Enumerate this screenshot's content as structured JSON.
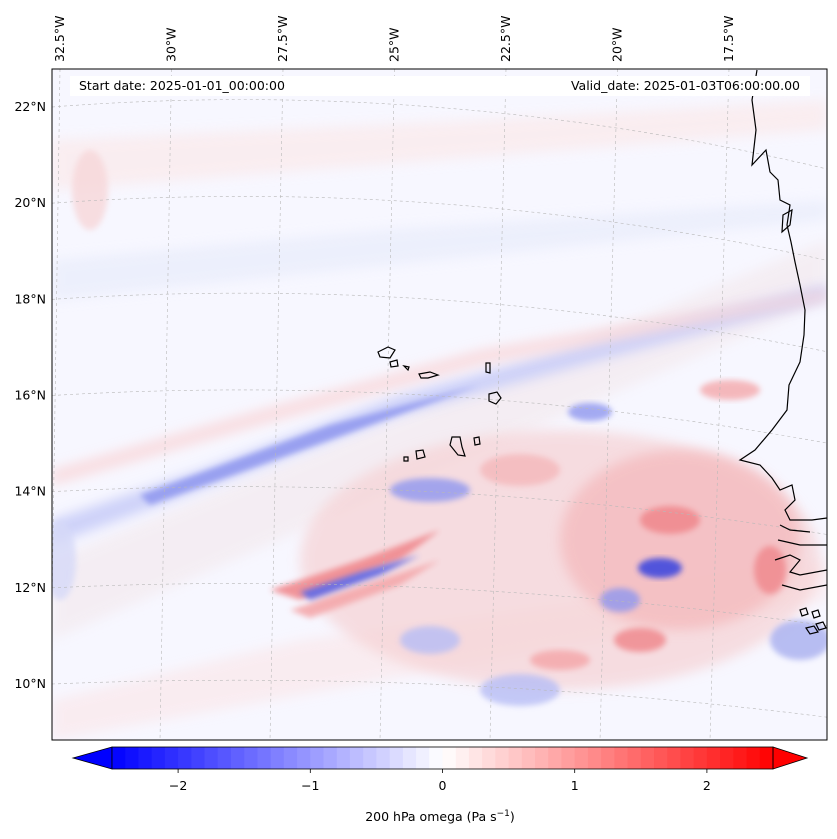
{
  "header": {
    "start_label": "Start date: 2025-01-01_00:00:00",
    "valid_label": "Valid_date: 2025-01-03T06:00:00.00"
  },
  "map": {
    "longitude_labels": [
      "32.5°W",
      "30°W",
      "27.5°W",
      "25°W",
      "22.5°W",
      "20°W",
      "17.5°W"
    ],
    "latitude_labels": [
      "22°N",
      "20°N",
      "18°N",
      "16°N",
      "14°N",
      "12°N",
      "10°N"
    ],
    "longitudes": [
      -32.5,
      -30,
      -27.5,
      -25,
      -22.5,
      -20,
      -17.5
    ],
    "latitudes": [
      22,
      20,
      18,
      16,
      14,
      12,
      10
    ],
    "extent": {
      "lon_min": -33,
      "lon_max": -15.8,
      "lat_min": 8.8,
      "lat_max": 22.8
    },
    "grid": true,
    "gridline_style": "dashed",
    "coastline_color": "#000000",
    "features": [
      "Cape Verde islands",
      "West African coastline (Mauritania, Senegal, Gambia, Guinea-Bissau)"
    ]
  },
  "colorbar": {
    "label_text": "200 hPa omega (Pa s",
    "label_exponent": "−1",
    "label_close": ")",
    "tick_labels": [
      "−2",
      "−1",
      "0",
      "1",
      "2"
    ],
    "ticks": [
      -2,
      -1,
      0,
      1,
      2
    ],
    "range": [
      -2.5,
      2.5
    ],
    "colormap": "bwr",
    "extend": "both",
    "color_negative": "#0000ff",
    "color_zero": "#ffffff",
    "color_positive": "#ff0000"
  }
}
